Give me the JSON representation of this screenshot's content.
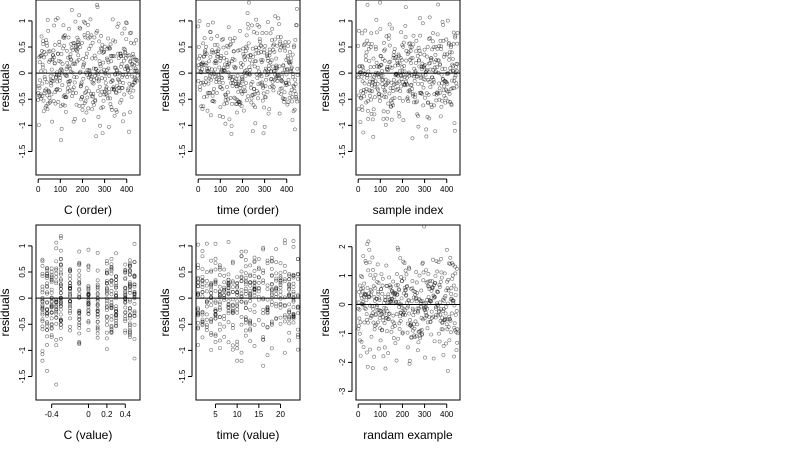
{
  "chart_data": [
    {
      "type": "scatter",
      "xlabel": "C (order)",
      "ylabel": "residuals",
      "x_ticks": [
        0,
        100,
        200,
        300,
        400
      ],
      "y_ticks": [
        -1.5,
        -1.0,
        -0.5,
        0.0,
        0.5,
        1.0
      ],
      "xlim": [
        -10,
        460
      ],
      "ylim": [
        -1.95,
        1.4
      ],
      "reference_line_y": 0,
      "x_kind": "index",
      "n_points": 450,
      "y_scale": 0.55,
      "seed": 11
    },
    {
      "type": "scatter",
      "xlabel": "time (order)",
      "ylabel": "residuals",
      "x_ticks": [
        0,
        100,
        200,
        300,
        400
      ],
      "y_ticks": [
        -1.5,
        -1.0,
        -0.5,
        0.0,
        0.5,
        1.0
      ],
      "xlim": [
        -10,
        460
      ],
      "ylim": [
        -1.95,
        1.4
      ],
      "reference_line_y": 0,
      "x_kind": "index",
      "n_points": 450,
      "y_scale": 0.55,
      "seed": 23
    },
    {
      "type": "scatter",
      "xlabel": "sample index",
      "ylabel": "residuals",
      "x_ticks": [
        0,
        100,
        200,
        300,
        400
      ],
      "y_ticks": [
        -1.5,
        -1.0,
        -0.5,
        0.0,
        0.5,
        1.0
      ],
      "xlim": [
        -10,
        460
      ],
      "ylim": [
        -1.95,
        1.4
      ],
      "reference_line_y": 0,
      "x_kind": "index",
      "n_points": 450,
      "y_scale": 0.55,
      "seed": 37
    },
    {
      "type": "scatter",
      "xlabel": "C (value)",
      "ylabel": "residuals",
      "x_ticks": [
        -0.4,
        0.0,
        0.2,
        0.4
      ],
      "y_ticks": [
        -1.5,
        -1.0,
        -0.5,
        0.0,
        0.5,
        1.0
      ],
      "xlim": [
        -0.57,
        0.56
      ],
      "ylim": [
        -1.95,
        1.4
      ],
      "reference_line_y": 0,
      "x_kind": "discrete",
      "x_levels": [
        -0.5,
        -0.45,
        -0.4,
        -0.35,
        -0.3,
        -0.2,
        -0.1,
        0.0,
        0.1,
        0.2,
        0.25,
        0.3,
        0.4,
        0.45,
        0.5
      ],
      "n_points": 450,
      "y_scale": 0.55,
      "seed": 41
    },
    {
      "type": "scatter",
      "xlabel": "time (value)",
      "ylabel": "residuals",
      "x_ticks": [
        5,
        10,
        15,
        20
      ],
      "y_ticks": [
        -1.5,
        -1.0,
        -0.5,
        0.0,
        0.5,
        1.0
      ],
      "xlim": [
        0.5,
        24.5
      ],
      "ylim": [
        -1.95,
        1.4
      ],
      "reference_line_y": 0,
      "x_kind": "discrete",
      "x_levels": [
        1,
        2,
        3,
        4,
        5,
        6,
        7,
        8,
        9,
        10,
        11,
        12,
        13,
        14,
        15,
        16,
        17,
        18,
        19,
        20,
        21,
        22,
        23,
        24
      ],
      "n_points": 450,
      "y_scale": 0.55,
      "seed": 53
    },
    {
      "type": "scatter",
      "xlabel": "randam example",
      "ylabel": "residuals",
      "x_ticks": [
        0,
        100,
        200,
        300,
        400
      ],
      "y_ticks": [
        -3,
        -2,
        -1,
        0,
        1,
        2
      ],
      "xlim": [
        -10,
        460
      ],
      "ylim": [
        -3.3,
        2.75
      ],
      "reference_line_y": 0,
      "x_kind": "index",
      "n_points": 450,
      "y_scale": 1.0,
      "seed": 67
    }
  ]
}
